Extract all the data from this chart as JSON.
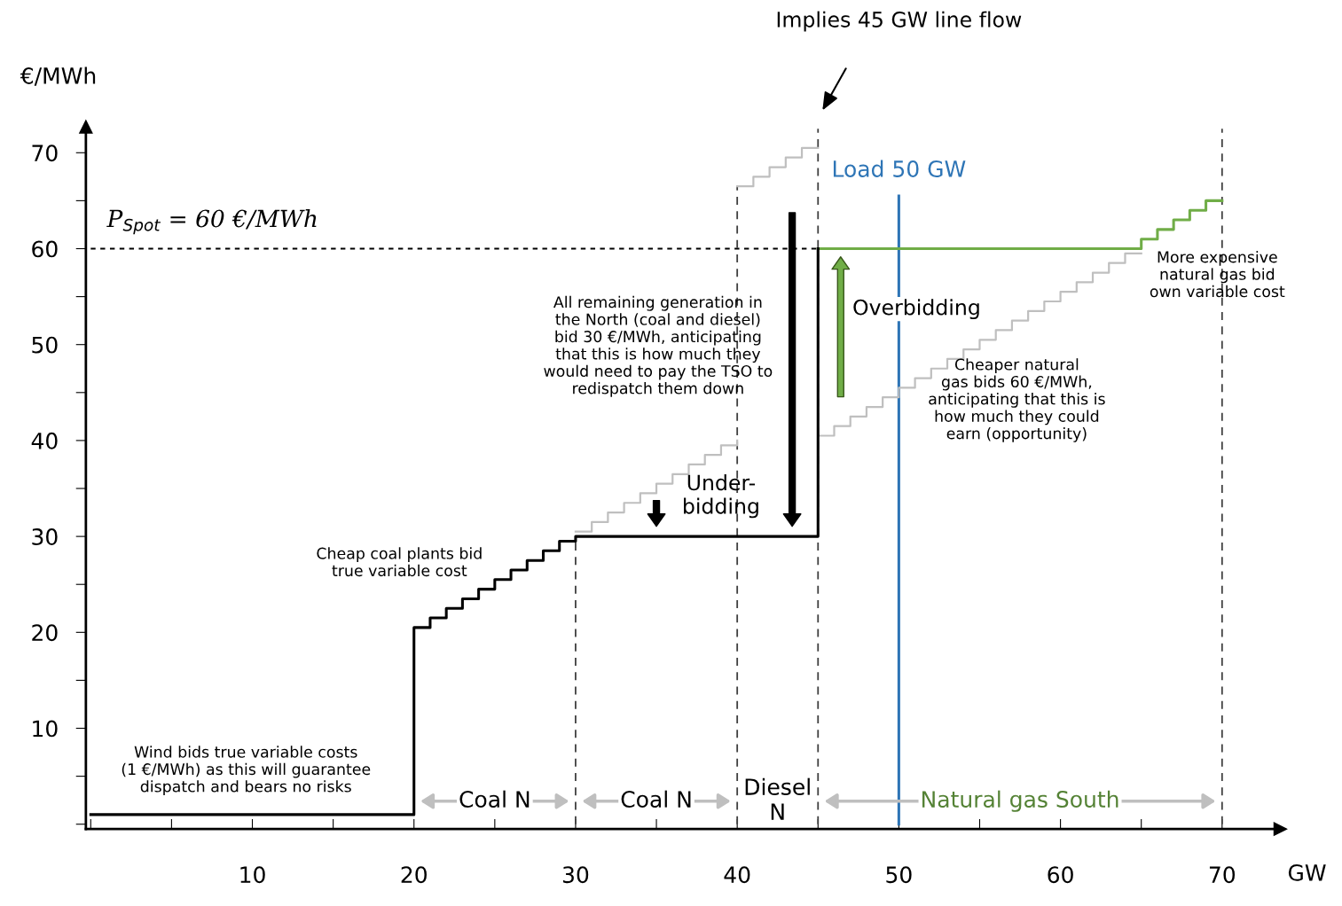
{
  "chart_data": {
    "type": "step",
    "xlabel": "GW",
    "ylabel": "€/MWh",
    "xlim": [
      -0.3,
      73.6
    ],
    "ylim": [
      -0.5,
      72.7
    ],
    "xticks": [
      {
        "value": 0,
        "label": null
      },
      {
        "value": 5,
        "label": null
      },
      10,
      {
        "value": 15,
        "label": null
      },
      20,
      {
        "value": 25,
        "label": null
      },
      30,
      {
        "value": 35,
        "label": null
      },
      40,
      {
        "value": 45,
        "label": null
      },
      50,
      {
        "value": 55,
        "label": null
      },
      60,
      {
        "value": 65,
        "label": null
      },
      70
    ],
    "yticks": [
      {
        "value": 0,
        "label": null
      },
      {
        "value": 5,
        "label": null
      },
      10,
      {
        "value": 15,
        "label": null
      },
      20,
      {
        "value": 25,
        "label": null
      },
      30,
      {
        "value": 35,
        "label": null
      },
      40,
      {
        "value": 45,
        "label": null
      },
      50,
      {
        "value": 55,
        "label": null
      },
      60,
      {
        "value": 65,
        "label": null
      },
      70
    ],
    "grid": false,
    "series": [
      {
        "type": "line",
        "name": "P$_{Spot}$ = 60 €/MWh",
        "color": "#000000",
        "line_style": "dotted",
        "x": [
          0,
          45
        ],
        "values": [
          60,
          60
        ]
      },
      {
        "type": "line",
        "color": "#404040",
        "line_style": "dashed",
        "x": [
          30,
          30
        ],
        "values": [
          0,
          30
        ]
      },
      {
        "type": "line",
        "color": "#404040",
        "line_style": "dashed",
        "x": [
          40,
          40
        ],
        "values": [
          0,
          66.5
        ]
      },
      {
        "type": "line",
        "color": "#404040",
        "line_style": "dashed",
        "x": [
          45,
          45
        ],
        "values": [
          0,
          72.5
        ]
      },
      {
        "type": "line",
        "color": "#404040",
        "line_style": "dashed",
        "x": [
          70,
          70
        ],
        "values": [
          0,
          72.5
        ]
      },
      {
        "color": "#bfbfbf",
        "x": [
          30,
          31,
          32,
          33,
          34,
          35,
          36,
          37,
          38,
          39,
          40
        ],
        "values": [
          30.5,
          31.5,
          32.5,
          33.5,
          34.5,
          35.5,
          36.5,
          37.5,
          38.5,
          39.5,
          40
        ]
      },
      {
        "color": "#bfbfbf",
        "x": [
          40,
          41,
          42,
          43,
          44,
          45
        ],
        "values": [
          66.5,
          67.5,
          68.5,
          69.5,
          70.5,
          70.5
        ]
      },
      {
        "color": "#bfbfbf",
        "x": [
          45,
          46,
          47,
          48,
          49,
          50,
          51,
          52,
          53,
          54,
          55,
          56,
          57,
          58,
          59,
          60,
          61,
          62,
          63,
          64,
          65
        ],
        "values": [
          40.5,
          41.5,
          42.5,
          43.5,
          44.5,
          45.5,
          46.5,
          47.5,
          48.5,
          49.5,
          50.5,
          51.5,
          52.5,
          53.5,
          54.5,
          55.5,
          56.5,
          57.5,
          58.5,
          59.5,
          59.5
        ]
      },
      {
        "color": "#70ad47",
        "x": [
          45,
          65,
          66,
          67,
          68,
          69,
          70
        ],
        "values": [
          60,
          61,
          62,
          63,
          64,
          65,
          65
        ]
      },
      {
        "color": "#000000",
        "x": [
          0,
          20,
          21,
          22,
          23,
          24,
          25,
          26,
          27,
          28,
          29,
          30,
          45
        ],
        "values": [
          1,
          20.5,
          21.5,
          22.5,
          23.5,
          24.5,
          25.5,
          26.5,
          27.5,
          28.5,
          29.5,
          30,
          60
        ]
      },
      {
        "type": "line",
        "name": "Load 50 GW",
        "color": "#2e75b6",
        "line_style": "solid",
        "x": [
          50,
          50
        ],
        "values": [
          0,
          65.5
        ]
      }
    ],
    "annotations": [
      "Implies 45 GW line flow",
      "Wind bids true variable costs\n(1 €/MWh) as this will guarantee\ndispatch and bears no risks",
      "Cheap coal plants bid\ntrue variable cost",
      "All remaining generation in\nthe North (coal and diesel)\nbid 30 €/MWh, anticipating\nthat this is how much they\nwould need to pay the TSO to\nredispatch them down",
      "Under-\nbidding",
      "Overbidding",
      "Cheaper natural\ngas bids 60 €/MWh,\nanticipating that this is\nhow much they could\nearn (opportunity)",
      "More expensive\nnatural gas bid\nown variable cost",
      "Coal N",
      "Coal N",
      "Diesel\nN",
      "Natural gas South"
    ]
  }
}
